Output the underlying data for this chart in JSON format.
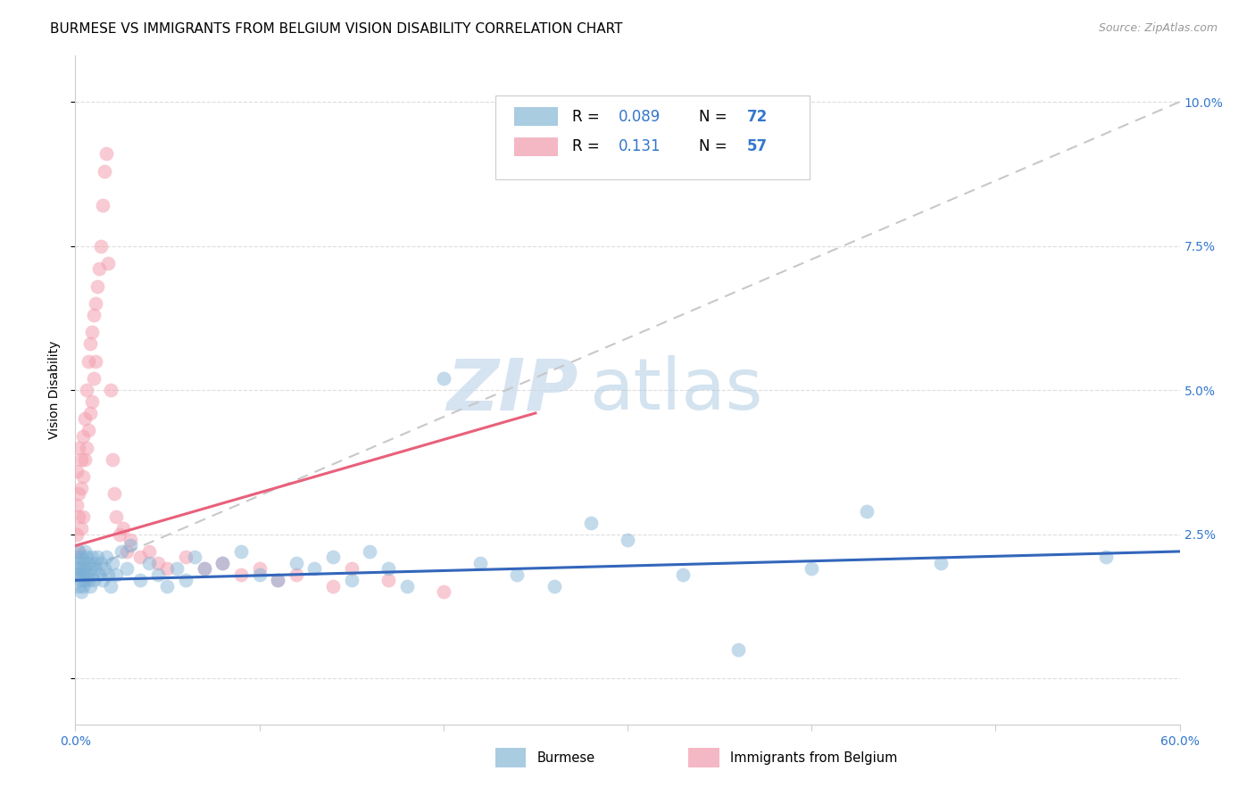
{
  "title": "BURMESE VS IMMIGRANTS FROM BELGIUM VISION DISABILITY CORRELATION CHART",
  "source": "Source: ZipAtlas.com",
  "ylabel": "Vision Disability",
  "xlim": [
    0.0,
    0.6
  ],
  "ylim": [
    -0.008,
    0.108
  ],
  "title_fontsize": 11,
  "tick_fontsize": 10,
  "legend_R1": "0.089",
  "legend_N1": "72",
  "legend_R2": "0.131",
  "legend_N2": "57",
  "blue_color": "#7BAFD4",
  "pink_color": "#F4A0B0",
  "blue_line_color": "#3366BB",
  "pink_line_color": "#E8607A",
  "dash_line_color": "#C8C8C8",
  "burmese_x": [
    0.001,
    0.001,
    0.001,
    0.002,
    0.002,
    0.002,
    0.002,
    0.003,
    0.003,
    0.003,
    0.003,
    0.004,
    0.004,
    0.004,
    0.005,
    0.005,
    0.005,
    0.006,
    0.006,
    0.007,
    0.007,
    0.008,
    0.008,
    0.009,
    0.009,
    0.01,
    0.01,
    0.011,
    0.012,
    0.013,
    0.014,
    0.015,
    0.016,
    0.017,
    0.018,
    0.019,
    0.02,
    0.022,
    0.025,
    0.028,
    0.03,
    0.035,
    0.04,
    0.045,
    0.05,
    0.055,
    0.06,
    0.065,
    0.07,
    0.08,
    0.09,
    0.1,
    0.11,
    0.12,
    0.13,
    0.14,
    0.15,
    0.16,
    0.17,
    0.18,
    0.2,
    0.22,
    0.24,
    0.26,
    0.28,
    0.3,
    0.33,
    0.36,
    0.4,
    0.43,
    0.47,
    0.56
  ],
  "burmese_y": [
    0.021,
    0.019,
    0.018,
    0.022,
    0.02,
    0.018,
    0.016,
    0.021,
    0.019,
    0.017,
    0.015,
    0.02,
    0.018,
    0.016,
    0.022,
    0.019,
    0.017,
    0.021,
    0.018,
    0.02,
    0.017,
    0.019,
    0.016,
    0.021,
    0.018,
    0.02,
    0.017,
    0.019,
    0.021,
    0.018,
    0.02,
    0.017,
    0.019,
    0.021,
    0.018,
    0.016,
    0.02,
    0.018,
    0.022,
    0.019,
    0.023,
    0.017,
    0.02,
    0.018,
    0.016,
    0.019,
    0.017,
    0.021,
    0.019,
    0.02,
    0.022,
    0.018,
    0.017,
    0.02,
    0.019,
    0.021,
    0.017,
    0.022,
    0.019,
    0.016,
    0.052,
    0.02,
    0.018,
    0.016,
    0.027,
    0.024,
    0.018,
    0.005,
    0.019,
    0.029,
    0.02,
    0.021
  ],
  "belgium_x": [
    0.001,
    0.001,
    0.001,
    0.002,
    0.002,
    0.002,
    0.002,
    0.003,
    0.003,
    0.003,
    0.004,
    0.004,
    0.004,
    0.005,
    0.005,
    0.006,
    0.006,
    0.007,
    0.007,
    0.008,
    0.008,
    0.009,
    0.009,
    0.01,
    0.01,
    0.011,
    0.011,
    0.012,
    0.013,
    0.014,
    0.015,
    0.016,
    0.017,
    0.018,
    0.019,
    0.02,
    0.021,
    0.022,
    0.024,
    0.026,
    0.028,
    0.03,
    0.035,
    0.04,
    0.045,
    0.05,
    0.06,
    0.07,
    0.08,
    0.09,
    0.1,
    0.11,
    0.12,
    0.14,
    0.15,
    0.17,
    0.2
  ],
  "belgium_y": [
    0.036,
    0.03,
    0.025,
    0.04,
    0.032,
    0.028,
    0.022,
    0.038,
    0.033,
    0.026,
    0.042,
    0.035,
    0.028,
    0.045,
    0.038,
    0.05,
    0.04,
    0.055,
    0.043,
    0.058,
    0.046,
    0.06,
    0.048,
    0.063,
    0.052,
    0.065,
    0.055,
    0.068,
    0.071,
    0.075,
    0.082,
    0.088,
    0.091,
    0.072,
    0.05,
    0.038,
    0.032,
    0.028,
    0.025,
    0.026,
    0.022,
    0.024,
    0.021,
    0.022,
    0.02,
    0.019,
    0.021,
    0.019,
    0.02,
    0.018,
    0.019,
    0.017,
    0.018,
    0.016,
    0.019,
    0.017,
    0.015
  ],
  "pink_line_x": [
    0.0,
    0.25
  ],
  "pink_line_y": [
    0.023,
    0.046
  ],
  "blue_line_x": [
    0.0,
    0.6
  ],
  "blue_line_y": [
    0.017,
    0.022
  ]
}
